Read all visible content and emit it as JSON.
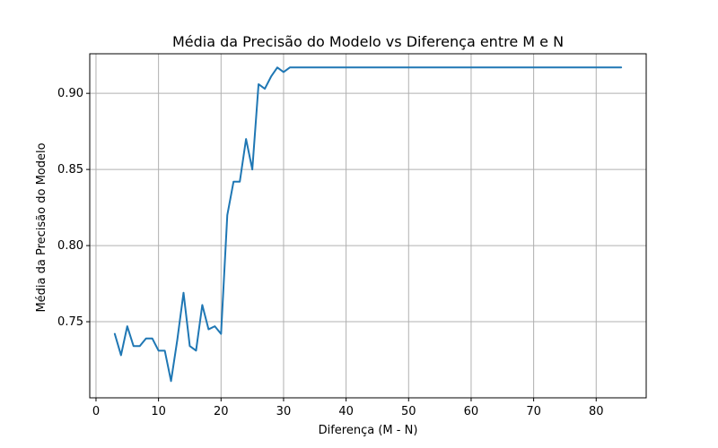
{
  "chart_data": {
    "type": "line",
    "title": "Média da Precisão do Modelo vs Diferença entre M e N",
    "xlabel": "Diferença (M - N)",
    "ylabel": "Média da Precisão do Modelo",
    "xlim": [
      -1,
      88
    ],
    "ylim": [
      0.7,
      0.926
    ],
    "x_ticks": [
      0,
      10,
      20,
      30,
      40,
      50,
      60,
      70,
      80
    ],
    "y_ticks": [
      0.75,
      0.8,
      0.85,
      0.9
    ],
    "y_tick_labels": [
      "0.75",
      "0.80",
      "0.85",
      "0.90"
    ],
    "grid": true,
    "series_color": "#1f77b4",
    "series": [
      {
        "x": [
          3,
          4,
          5,
          6,
          7,
          8,
          9,
          10,
          11,
          12,
          13,
          14,
          15,
          16,
          17,
          18,
          19,
          20,
          21,
          22,
          23,
          24,
          25,
          26,
          27,
          28,
          29,
          30,
          31,
          32,
          33,
          34,
          35,
          40,
          50,
          60,
          70,
          80,
          84
        ],
        "values": [
          0.742,
          0.728,
          0.747,
          0.734,
          0.734,
          0.739,
          0.739,
          0.731,
          0.731,
          0.711,
          0.738,
          0.769,
          0.734,
          0.731,
          0.761,
          0.745,
          0.747,
          0.742,
          0.82,
          0.842,
          0.842,
          0.87,
          0.85,
          0.906,
          0.903,
          0.911,
          0.917,
          0.914,
          0.917,
          0.917,
          0.917,
          0.917,
          0.917,
          0.917,
          0.917,
          0.917,
          0.917,
          0.917,
          0.917
        ]
      }
    ]
  }
}
